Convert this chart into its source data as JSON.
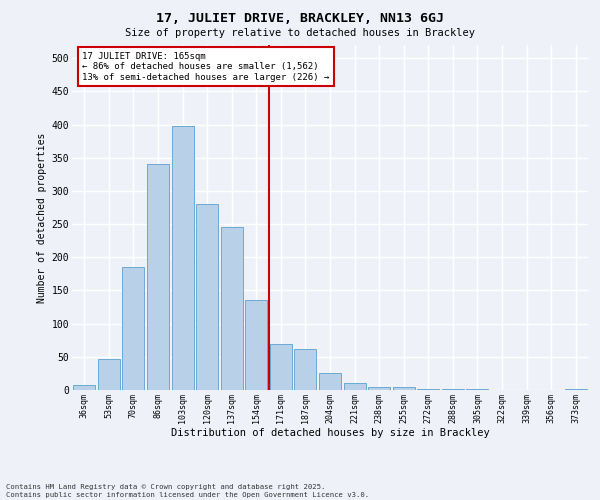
{
  "title": "17, JULIET DRIVE, BRACKLEY, NN13 6GJ",
  "subtitle": "Size of property relative to detached houses in Brackley",
  "xlabel": "Distribution of detached houses by size in Brackley",
  "ylabel": "Number of detached properties",
  "bar_labels": [
    "36sqm",
    "53sqm",
    "70sqm",
    "86sqm",
    "103sqm",
    "120sqm",
    "137sqm",
    "154sqm",
    "171sqm",
    "187sqm",
    "204sqm",
    "221sqm",
    "238sqm",
    "255sqm",
    "272sqm",
    "288sqm",
    "305sqm",
    "322sqm",
    "339sqm",
    "356sqm",
    "373sqm"
  ],
  "bar_values": [
    8,
    46,
    186,
    340,
    398,
    280,
    246,
    136,
    70,
    62,
    25,
    11,
    5,
    4,
    2,
    1,
    1,
    0,
    0,
    0,
    2
  ],
  "bar_color": "#b8d0e8",
  "bar_edge_color": "#6aaad4",
  "vline_color": "#cc0000",
  "annotation_title": "17 JULIET DRIVE: 165sqm",
  "annotation_line1": "← 86% of detached houses are smaller (1,562)",
  "annotation_line2": "13% of semi-detached houses are larger (226) →",
  "annotation_box_color": "#ffffff",
  "annotation_box_edge": "#cc0000",
  "bg_color": "#eef2f8",
  "grid_color": "#ffffff",
  "ylim": [
    0,
    520
  ],
  "yticks": [
    0,
    50,
    100,
    150,
    200,
    250,
    300,
    350,
    400,
    450,
    500
  ],
  "footer_line1": "Contains HM Land Registry data © Crown copyright and database right 2025.",
  "footer_line2": "Contains public sector information licensed under the Open Government Licence v3.0."
}
